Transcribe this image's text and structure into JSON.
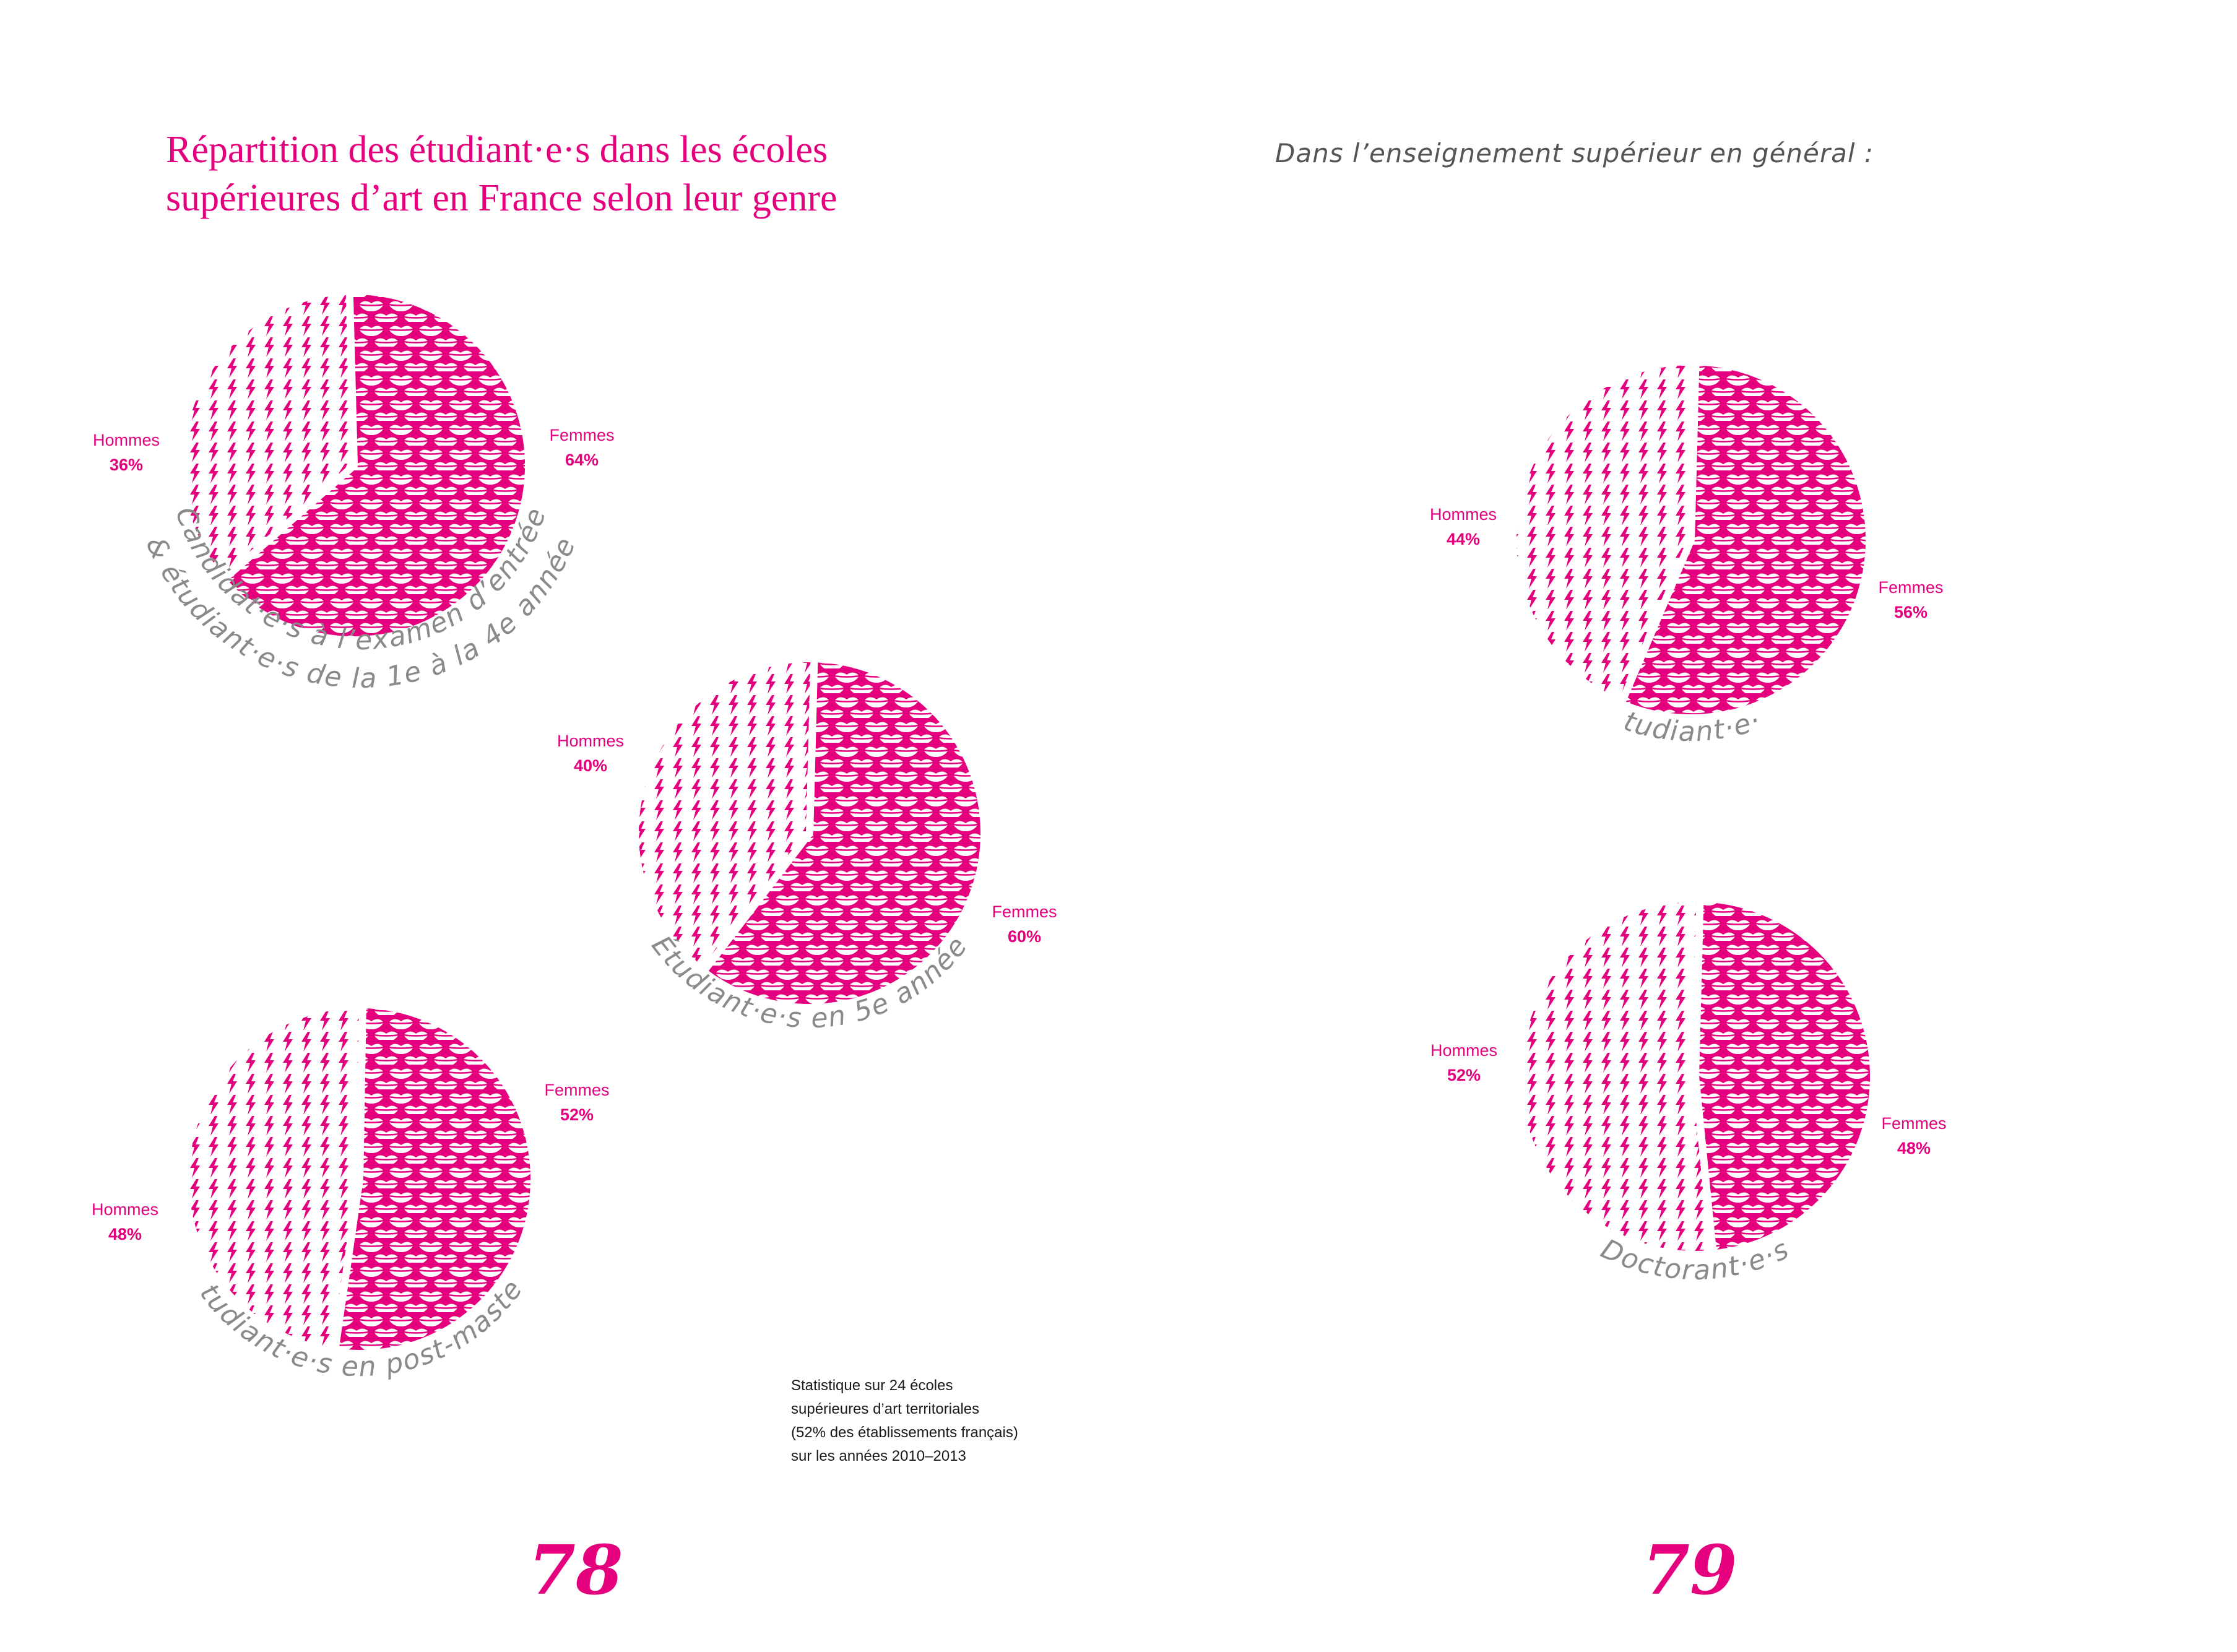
{
  "title_lines": [
    "Répartition des étudiant·e·s dans les écoles",
    "supérieures d’art en France selon leur genre"
  ],
  "subtitle": "Dans l’enseignement supérieur en général :",
  "note_lines": [
    "Statistique sur 24 écoles",
    "supérieures d’art territoriales",
    "(52% des établissements français)",
    "sur les années 2010–2013"
  ],
  "page_numbers": [
    "78",
    "79"
  ],
  "colors": {
    "accent": "#e5007e",
    "background": "#ffffff"
  },
  "chart_data": [
    {
      "type": "pie",
      "caption_lines": [
        "Candidat·e·s à l’examen d’entrée",
        "& étudiant·e·s de la 1e à la 4e année"
      ],
      "slices": [
        {
          "label": "Femmes",
          "value": 64,
          "display": "64%",
          "pattern": "lips"
        },
        {
          "label": "Hommes",
          "value": 36,
          "display": "36%",
          "pattern": "lightning"
        }
      ]
    },
    {
      "type": "pie",
      "caption_lines": [
        "Étudiant·e·s en 5e année"
      ],
      "slices": [
        {
          "label": "Femmes",
          "value": 60,
          "display": "60%",
          "pattern": "lips"
        },
        {
          "label": "Hommes",
          "value": 40,
          "display": "40%",
          "pattern": "lightning"
        }
      ]
    },
    {
      "type": "pie",
      "caption_lines": [
        "Étudiant·e·s en post-master"
      ],
      "slices": [
        {
          "label": "Femmes",
          "value": 52,
          "display": "52%",
          "pattern": "lips"
        },
        {
          "label": "Hommes",
          "value": 48,
          "display": "48%",
          "pattern": "lightning"
        }
      ]
    },
    {
      "type": "pie",
      "caption_lines": [
        "Étudiant·e·s"
      ],
      "slices": [
        {
          "label": "Femmes",
          "value": 56,
          "display": "56%",
          "pattern": "lips"
        },
        {
          "label": "Hommes",
          "value": 44,
          "display": "44%",
          "pattern": "lightning"
        }
      ]
    },
    {
      "type": "pie",
      "caption_lines": [
        "Doctorant·e·s"
      ],
      "slices": [
        {
          "label": "Femmes",
          "value": 48,
          "display": "48%",
          "pattern": "lips"
        },
        {
          "label": "Hommes",
          "value": 52,
          "display": "52%",
          "pattern": "lightning"
        }
      ]
    }
  ]
}
